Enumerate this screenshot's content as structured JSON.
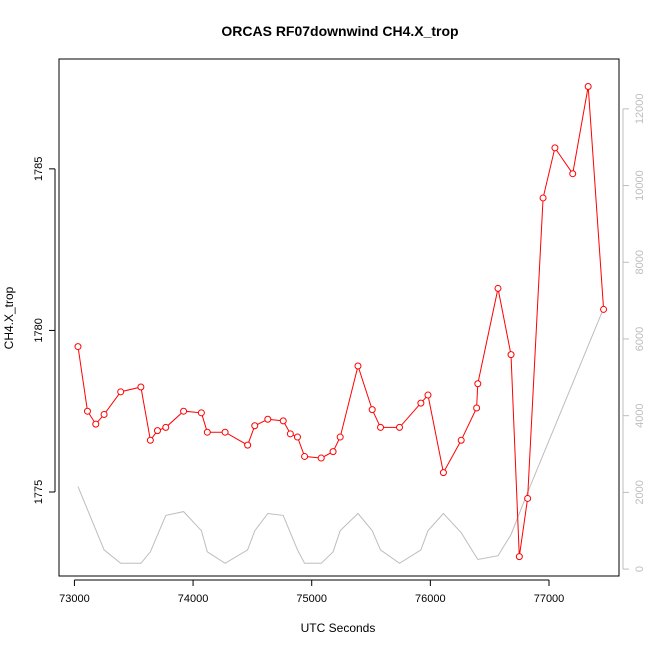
{
  "chart_data": {
    "type": "line",
    "title": "ORCAS RF07downwind CH4.X_trop",
    "xlabel": "UTC Seconds",
    "ylabel": "CH4.X_trop",
    "xlim": [
      72870,
      77590
    ],
    "ylim": [
      1772.4,
      1788.4
    ],
    "y2lim": [
      -180,
      13300
    ],
    "x_ticks": [
      73000,
      74000,
      75000,
      76000,
      77000
    ],
    "y_ticks": [
      1775,
      1780,
      1785
    ],
    "y2_ticks": [
      0,
      2000,
      4000,
      6000,
      8000,
      10000,
      12000
    ],
    "grid": false,
    "series": [
      {
        "color": "#ff0000",
        "axis": "left",
        "marker": "open-circle",
        "x": [
          73030,
          73110,
          73180,
          73250,
          73390,
          73560,
          73640,
          73700,
          73770,
          73920,
          74070,
          74120,
          74270,
          74460,
          74520,
          74630,
          74760,
          74820,
          74880,
          74940,
          75080,
          75180,
          75240,
          75390,
          75510,
          75580,
          75740,
          75920,
          75980,
          76110,
          76260,
          76390,
          76400,
          76570,
          76680,
          76750,
          76820,
          76950,
          77050,
          77200,
          77330,
          77460
        ],
        "y": [
          1779.5,
          1777.5,
          1777.1,
          1777.4,
          1778.1,
          1778.25,
          1776.6,
          1776.9,
          1777.0,
          1777.5,
          1777.45,
          1776.85,
          1776.85,
          1776.45,
          1777.05,
          1777.25,
          1777.2,
          1776.8,
          1776.7,
          1776.1,
          1776.05,
          1776.25,
          1776.7,
          1778.9,
          1777.55,
          1777.0,
          1777.0,
          1777.75,
          1778.0,
          1775.6,
          1776.6,
          1777.6,
          1778.35,
          1781.3,
          1779.25,
          1773.0,
          1774.8,
          1784.1,
          1785.65,
          1784.85,
          1787.55,
          1780.65
        ]
      },
      {
        "color": "#bdbdbd",
        "axis": "right",
        "marker": "none",
        "x": [
          73030,
          73250,
          73390,
          73560,
          73640,
          73770,
          73920,
          74070,
          74120,
          74270,
          74460,
          74520,
          74630,
          74760,
          74880,
          74940,
          75080,
          75180,
          75240,
          75390,
          75510,
          75580,
          75740,
          75920,
          75980,
          76110,
          76260,
          76400,
          76570,
          76680,
          76820,
          77460
        ],
        "y": [
          2150,
          500,
          150,
          150,
          450,
          1400,
          1500,
          1000,
          450,
          150,
          500,
          1000,
          1450,
          1400,
          500,
          150,
          150,
          450,
          1000,
          1450,
          1000,
          500,
          150,
          500,
          1000,
          1450,
          950,
          250,
          350,
          900,
          2000,
          6800
        ]
      }
    ]
  }
}
